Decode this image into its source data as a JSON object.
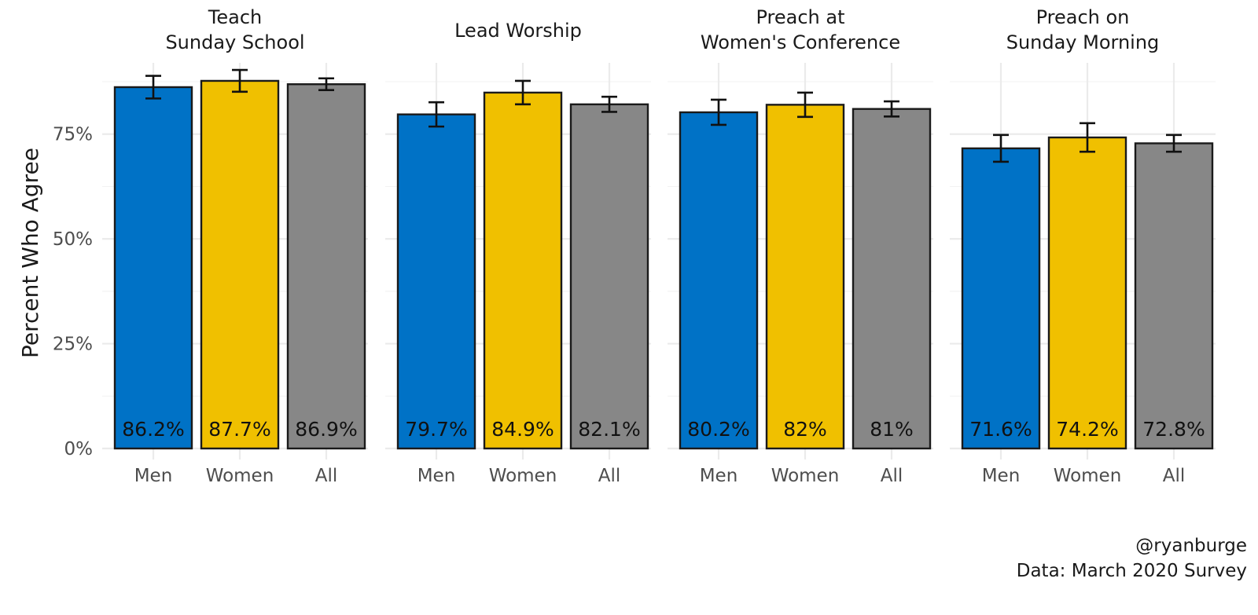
{
  "chart_data": {
    "type": "bar",
    "ylabel": "Percent Who Agree",
    "ylim": [
      0,
      0.92
    ],
    "yticks": [
      0,
      0.25,
      0.5,
      0.75
    ],
    "ytick_labels": [
      "0%",
      "25%",
      "50%",
      "75%"
    ],
    "categories": [
      "Men",
      "Women",
      "All"
    ],
    "colors": {
      "Men": "#0072c6",
      "Women": "#f0c000",
      "All": "#878787"
    },
    "facets": [
      {
        "title_lines": [
          "Teach",
          "Sunday School"
        ],
        "values": [
          0.862,
          0.877,
          0.869
        ],
        "ci_low": [
          0.835,
          0.851,
          0.855
        ],
        "ci_high": [
          0.889,
          0.903,
          0.883
        ],
        "labels": [
          "86.2%",
          "87.7%",
          "86.9%"
        ]
      },
      {
        "title_lines": [
          "Lead Worship"
        ],
        "values": [
          0.797,
          0.849,
          0.821
        ],
        "ci_low": [
          0.768,
          0.821,
          0.803
        ],
        "ci_high": [
          0.826,
          0.877,
          0.839
        ],
        "labels": [
          "79.7%",
          "84.9%",
          "82.1%"
        ]
      },
      {
        "title_lines": [
          "Preach at",
          "Women's Conference"
        ],
        "values": [
          0.802,
          0.82,
          0.81
        ],
        "ci_low": [
          0.772,
          0.791,
          0.792
        ],
        "ci_high": [
          0.832,
          0.849,
          0.828
        ],
        "labels": [
          "80.2%",
          "82%",
          "81%"
        ]
      },
      {
        "title_lines": [
          "Preach on",
          "Sunday Morning"
        ],
        "values": [
          0.716,
          0.742,
          0.728
        ],
        "ci_low": [
          0.684,
          0.708,
          0.708
        ],
        "ci_high": [
          0.748,
          0.776,
          0.748
        ],
        "labels": [
          "71.6%",
          "74.2%",
          "72.8%"
        ]
      }
    ],
    "caption_lines": [
      "@ryanburge",
      "Data: March 2020 Survey"
    ]
  }
}
